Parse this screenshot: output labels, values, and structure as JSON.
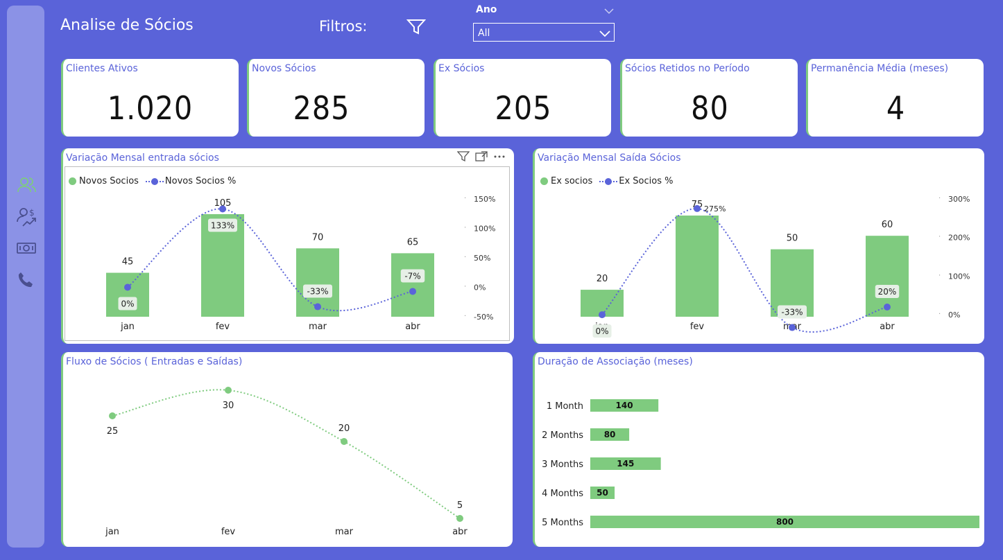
{
  "header": {
    "title": "Analise de Sócios",
    "filters_label": "Filtros:",
    "slicer": {
      "title": "Ano",
      "selected": "All"
    }
  },
  "kpis": [
    {
      "label": "Clientes Ativos",
      "value": "1.020"
    },
    {
      "label": "Novos Sócios",
      "value": "285"
    },
    {
      "label": "Ex Sócios",
      "value": "205"
    },
    {
      "label": "Sócios Retidos no Período",
      "value": "80"
    },
    {
      "label": "Permanência Média (meses)",
      "value": "4"
    }
  ],
  "sidebar": {
    "icons": [
      "users-icon",
      "user-money-icon",
      "banknote-icon",
      "phone-icon"
    ]
  },
  "colors": {
    "background": "#5a63d9",
    "bar": "#7fcb7f",
    "line": "#5a63d9"
  },
  "chart_data": [
    {
      "type": "bar",
      "title": "Variação Mensal entrada sócios",
      "categories": [
        "jan",
        "fev",
        "mar",
        "abr"
      ],
      "series": [
        {
          "name": "Novos Socios",
          "values": [
            45,
            105,
            70,
            65
          ]
        },
        {
          "name": "Novos Socios %",
          "values": [
            0,
            133,
            -33,
            -7
          ],
          "labels": [
            "0%",
            "133%",
            "-33%",
            "-7%"
          ],
          "axis": "right"
        }
      ],
      "ylim_right": [
        -50,
        150
      ],
      "right_ticks": [
        "150%",
        "100%",
        "50%",
        "0%",
        "-50%"
      ]
    },
    {
      "type": "bar",
      "title": "Variação Mensal Saída Sócios",
      "categories": [
        "jan",
        "fev",
        "mar",
        "abr"
      ],
      "series": [
        {
          "name": "Ex socios",
          "values": [
            20,
            75,
            50,
            60
          ]
        },
        {
          "name": "Ex Socios %",
          "values": [
            0,
            275,
            -33,
            20
          ],
          "labels": [
            "0%",
            "275%",
            "-33%",
            "20%"
          ],
          "axis": "right"
        }
      ],
      "ylim_right": [
        -50,
        300
      ],
      "right_ticks": [
        "300%",
        "200%",
        "100%",
        "0%"
      ]
    },
    {
      "type": "line",
      "title": "Fluxo de Sócios ( Entradas e Saídas)",
      "categories": [
        "jan",
        "fev",
        "mar",
        "abr"
      ],
      "values": [
        25,
        30,
        20,
        5
      ],
      "ylim": [
        5,
        30
      ]
    },
    {
      "type": "bar",
      "orientation": "horizontal",
      "title": "Duração de Associação (meses)",
      "categories": [
        "1 Month",
        "2 Months",
        "3 Months",
        "4 Months",
        "5 Months"
      ],
      "values": [
        140,
        80,
        145,
        50,
        800
      ],
      "xlim": [
        0,
        800
      ]
    }
  ]
}
